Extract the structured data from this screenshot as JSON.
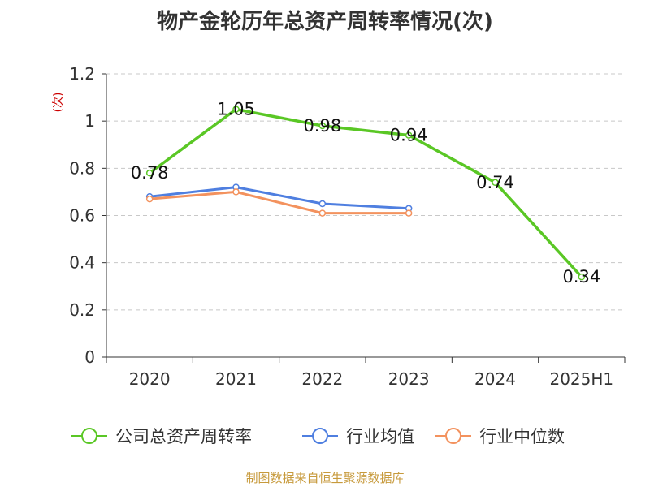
{
  "chart_data": {
    "type": "line",
    "title": "物产金轮历年总资产周转率情况(次)",
    "ylabel": "(次)",
    "categories": [
      "2020",
      "2021",
      "2022",
      "2023",
      "2024",
      "2025H1"
    ],
    "ylim": [
      0,
      1.2
    ],
    "yticks": [
      "0",
      "0.2",
      "0.4",
      "0.6",
      "0.8",
      "1",
      "1.2"
    ],
    "grid": true,
    "legend_position": "bottom",
    "series": [
      {
        "name": "公司总资产周转率",
        "color": "#5ac725",
        "values": [
          0.78,
          1.05,
          0.98,
          0.94,
          0.74,
          0.34
        ],
        "labels": [
          "0.78",
          "1.05",
          "0.98",
          "0.94",
          "0.74",
          "0.34"
        ]
      },
      {
        "name": "行业均值",
        "color": "#4f7fe0",
        "values": [
          0.68,
          0.72,
          0.65,
          0.63,
          null,
          null
        ]
      },
      {
        "name": "行业中位数",
        "color": "#f3925e",
        "values": [
          0.67,
          0.7,
          0.61,
          0.61,
          null,
          null
        ]
      }
    ]
  },
  "footer": "制图数据来自恒生聚源数据库"
}
